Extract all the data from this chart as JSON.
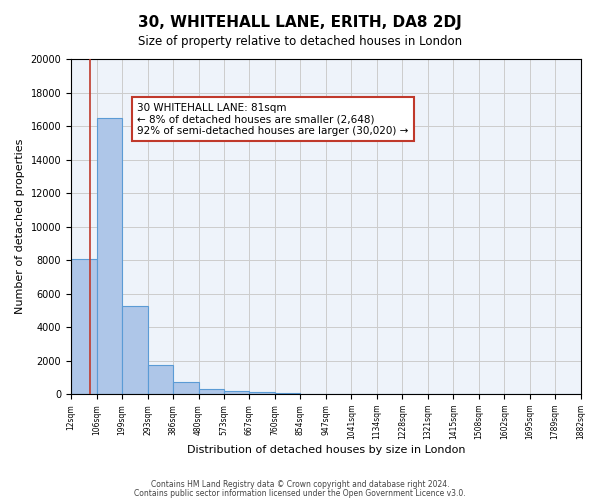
{
  "title": "30, WHITEHALL LANE, ERITH, DA8 2DJ",
  "subtitle": "Size of property relative to detached houses in London",
  "xlabel": "Distribution of detached houses by size in London",
  "ylabel": "Number of detached properties",
  "bar_values": [
    8050,
    16500,
    5250,
    1750,
    750,
    275,
    175,
    100,
    50,
    0,
    0,
    0,
    0,
    0,
    0,
    0,
    0,
    0,
    0
  ],
  "bin_edges": [
    12,
    106,
    199,
    293,
    386,
    480,
    573,
    667,
    760,
    854,
    947,
    1041,
    1134,
    1228,
    1321,
    1415,
    1508,
    1602,
    1695,
    1882
  ],
  "tick_labels": [
    "12sqm",
    "106sqm",
    "199sqm",
    "293sqm",
    "386sqm",
    "480sqm",
    "573sqm",
    "667sqm",
    "760sqm",
    "854sqm",
    "947sqm",
    "1041sqm",
    "1134sqm",
    "1228sqm",
    "1321sqm",
    "1415sqm",
    "1508sqm",
    "1602sqm",
    "1695sqm",
    "1789sqm",
    "1882sqm"
  ],
  "tick_positions": [
    12,
    106,
    199,
    293,
    386,
    480,
    573,
    667,
    760,
    854,
    947,
    1041,
    1134,
    1228,
    1321,
    1415,
    1508,
    1602,
    1695,
    1789,
    1882
  ],
  "bar_color": "#aec6e8",
  "bar_edge_color": "#5b9bd5",
  "grid_color": "#cccccc",
  "bg_color": "#eef3fa",
  "property_line_x": 81,
  "property_line_color": "#c0392b",
  "annotation_box_text": "30 WHITEHALL LANE: 81sqm\n← 8% of detached houses are smaller (2,648)\n92% of semi-detached houses are larger (30,020) →",
  "footer_line1": "Contains HM Land Registry data © Crown copyright and database right 2024.",
  "footer_line2": "Contains public sector information licensed under the Open Government Licence v3.0.",
  "ylim": [
    0,
    20000
  ],
  "yticks": [
    0,
    2000,
    4000,
    6000,
    8000,
    10000,
    12000,
    14000,
    16000,
    18000,
    20000
  ]
}
